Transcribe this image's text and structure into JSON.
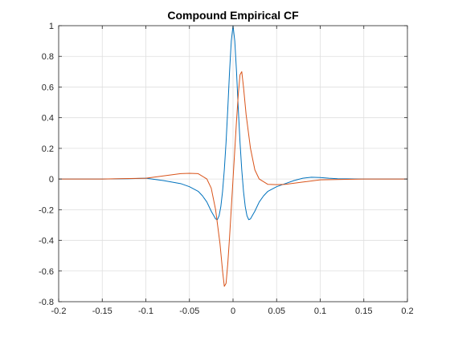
{
  "chart_data": {
    "type": "line",
    "title": "Compound Empirical CF",
    "xlabel": "",
    "ylabel": "",
    "xlim": [
      -0.2,
      0.2
    ],
    "ylim": [
      -0.8,
      1.0
    ],
    "xticks": [
      -0.2,
      -0.15,
      -0.1,
      -0.05,
      0,
      0.05,
      0.1,
      0.15,
      0.2
    ],
    "xtick_labels": [
      "-0.2",
      "-0.15",
      "-0.1",
      "-0.05",
      "0",
      "0.05",
      "0.1",
      "0.15",
      "0.2"
    ],
    "yticks": [
      -0.8,
      -0.6,
      -0.4,
      -0.2,
      0,
      0.2,
      0.4,
      0.6,
      0.8,
      1.0
    ],
    "ytick_labels": [
      "-0.8",
      "-0.6",
      "-0.4",
      "-0.2",
      "0",
      "0.2",
      "0.4",
      "0.6",
      "0.8",
      "1"
    ],
    "grid": true,
    "series": [
      {
        "color": "#0072BD",
        "x": [
          -0.2,
          -0.15,
          -0.12,
          -0.1,
          -0.08,
          -0.06,
          -0.05,
          -0.04,
          -0.035,
          -0.03,
          -0.025,
          -0.02,
          -0.018,
          -0.016,
          -0.014,
          -0.012,
          -0.01,
          -0.008,
          -0.006,
          -0.004,
          -0.002,
          0,
          0.002,
          0.004,
          0.006,
          0.008,
          0.01,
          0.012,
          0.014,
          0.016,
          0.018,
          0.02,
          0.025,
          0.03,
          0.035,
          0.04,
          0.05,
          0.06,
          0.07,
          0.08,
          0.09,
          0.1,
          0.11,
          0.12,
          0.15,
          0.2
        ],
        "y": [
          0,
          0,
          0.002,
          0.005,
          -0.01,
          -0.03,
          -0.05,
          -0.08,
          -0.11,
          -0.15,
          -0.21,
          -0.26,
          -0.265,
          -0.24,
          -0.18,
          -0.08,
          0.06,
          0.24,
          0.46,
          0.7,
          0.9,
          1.0,
          0.9,
          0.7,
          0.46,
          0.24,
          0.06,
          -0.08,
          -0.18,
          -0.24,
          -0.265,
          -0.26,
          -0.21,
          -0.15,
          -0.11,
          -0.08,
          -0.05,
          -0.03,
          -0.01,
          0.005,
          0.012,
          0.01,
          0.005,
          0.002,
          0,
          0
        ]
      },
      {
        "color": "#D95319",
        "x": [
          -0.2,
          -0.15,
          -0.1,
          -0.08,
          -0.06,
          -0.05,
          -0.04,
          -0.03,
          -0.025,
          -0.02,
          -0.015,
          -0.012,
          -0.01,
          -0.008,
          -0.006,
          -0.004,
          -0.002,
          0,
          0.002,
          0.004,
          0.006,
          0.008,
          0.01,
          0.012,
          0.015,
          0.02,
          0.025,
          0.03,
          0.04,
          0.05,
          0.06,
          0.08,
          0.1,
          0.15,
          0.2
        ],
        "y": [
          0,
          0,
          0.005,
          0.02,
          0.035,
          0.037,
          0.035,
          0.0,
          -0.06,
          -0.2,
          -0.42,
          -0.6,
          -0.7,
          -0.68,
          -0.55,
          -0.38,
          -0.19,
          0,
          0.19,
          0.38,
          0.55,
          0.68,
          0.7,
          0.6,
          0.42,
          0.2,
          0.06,
          0.0,
          -0.035,
          -0.037,
          -0.035,
          -0.02,
          -0.005,
          0,
          0
        ]
      }
    ]
  }
}
